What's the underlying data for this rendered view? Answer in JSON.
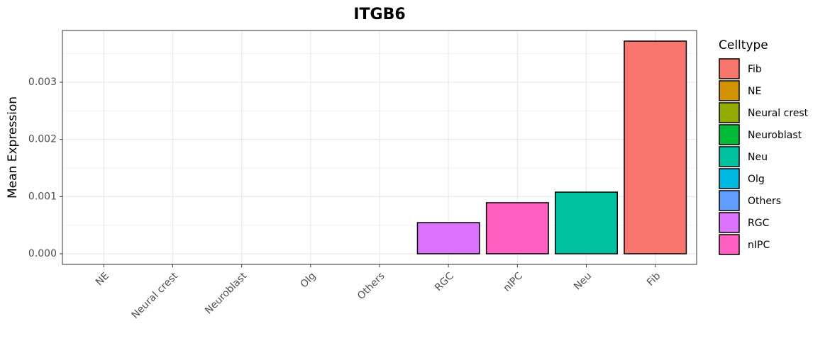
{
  "chart_data": {
    "type": "bar",
    "title": "ITGB6",
    "y_label": "Mean Expression",
    "categories": [
      "NE",
      "Neural crest",
      "Neuroblast",
      "Olg",
      "Others",
      "RGC",
      "nIPC",
      "Neu",
      "Fib"
    ],
    "values": [
      0,
      0,
      0,
      0,
      0,
      0.000545,
      0.000893,
      0.001078,
      0.003719
    ],
    "colors": [
      "#D39200",
      "#93AA00",
      "#00BA38",
      "#00B9E3",
      "#619CFF",
      "#DB72FB",
      "#FF61C3",
      "#00C19F",
      "#F8766D"
    ],
    "ylim": [
      -0.000186,
      0.003905
    ],
    "yticks": [
      {
        "value": 0,
        "label": "0.000"
      },
      0.001,
      0.002,
      0.003
    ],
    "minor_yticks": [
      0.0005,
      0.0015,
      0.0025,
      0.0035
    ],
    "grid": true,
    "legend": {
      "title": "Celltype",
      "position": "right",
      "entries": [
        {
          "name": "Fib",
          "color": "#F8766D"
        },
        {
          "name": "NE",
          "color": "#D39200"
        },
        {
          "name": "Neural crest",
          "color": "#93AA00"
        },
        {
          "name": "Neuroblast",
          "color": "#00BA38"
        },
        {
          "name": "Neu",
          "color": "#00C19F"
        },
        {
          "name": "Olg",
          "color": "#00B9E3"
        },
        {
          "name": "Others",
          "color": "#619CFF"
        },
        {
          "name": "RGC",
          "color": "#DB72FB"
        },
        {
          "name": "nIPC",
          "color": "#FF61C3"
        }
      ]
    }
  }
}
